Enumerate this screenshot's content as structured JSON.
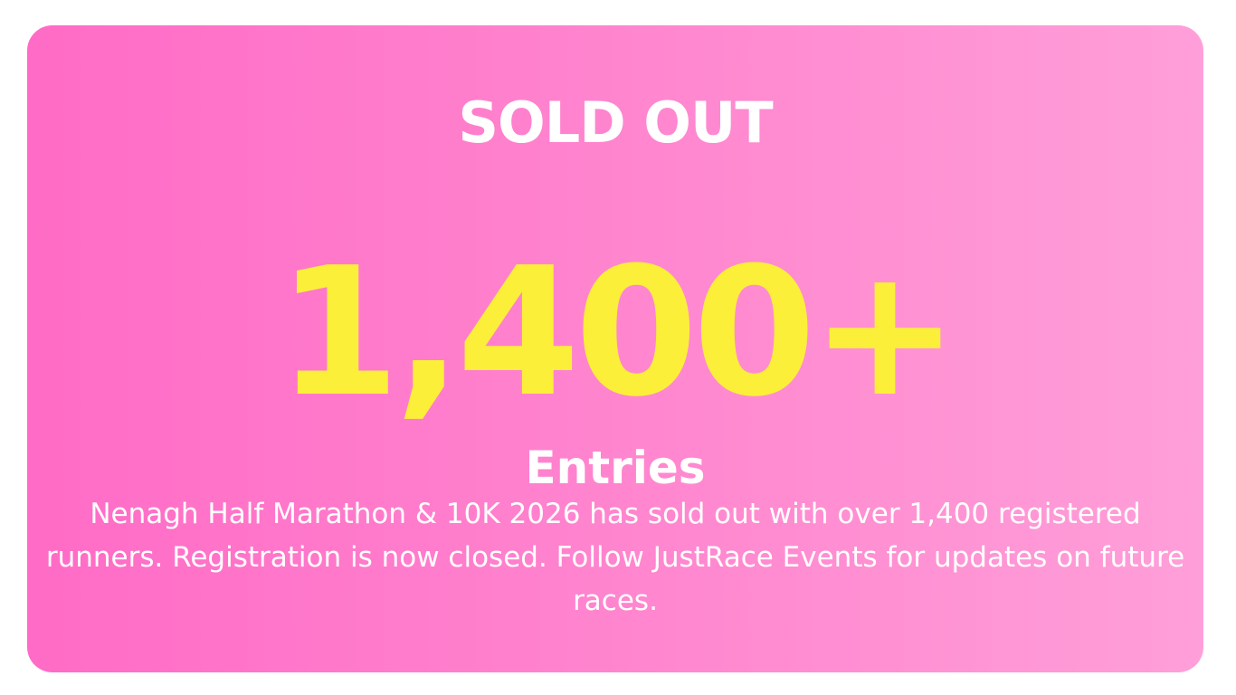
{
  "card": {
    "status": "SOLD OUT",
    "count": "1,400+",
    "count_label": "Entries",
    "description": "Nenagh Half Marathon & 10K 2026 has sold out with over 1,400 registered runners. Registration is now closed. Follow JustRace Events for updates on future races."
  }
}
